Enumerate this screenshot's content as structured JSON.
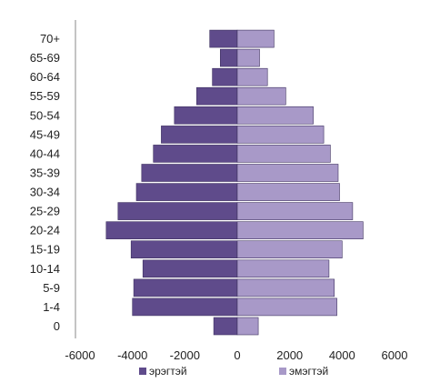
{
  "chart_data": {
    "type": "bar",
    "orientation": "horizontal",
    "categories": [
      "0",
      "1-4",
      "5-9",
      "10-14",
      "15-19",
      "20-24",
      "25-29",
      "30-34",
      "35-39",
      "40-44",
      "45-49",
      "50-54",
      "55-59",
      "60-64",
      "65-69",
      "70+"
    ],
    "series": [
      {
        "name": "эрэгтэй",
        "color": "#5f4b8b",
        "values": [
          -900,
          -4000,
          -3950,
          -3600,
          -4050,
          -5000,
          -4550,
          -3850,
          -3650,
          -3200,
          -2900,
          -2400,
          -1550,
          -950,
          -650,
          -1050
        ]
      },
      {
        "name": "эмэгтэй",
        "color": "#a899c8",
        "values": [
          800,
          3800,
          3700,
          3500,
          4000,
          4800,
          4400,
          3900,
          3850,
          3550,
          3300,
          2900,
          1850,
          1150,
          850,
          1400
        ]
      }
    ],
    "xticks": [
      "-6000",
      "-4000",
      "-2000",
      "0",
      "2000",
      "4000",
      "6000"
    ],
    "xlim": [
      -6000,
      6000
    ],
    "grid": false,
    "legend_position": "bottom"
  }
}
